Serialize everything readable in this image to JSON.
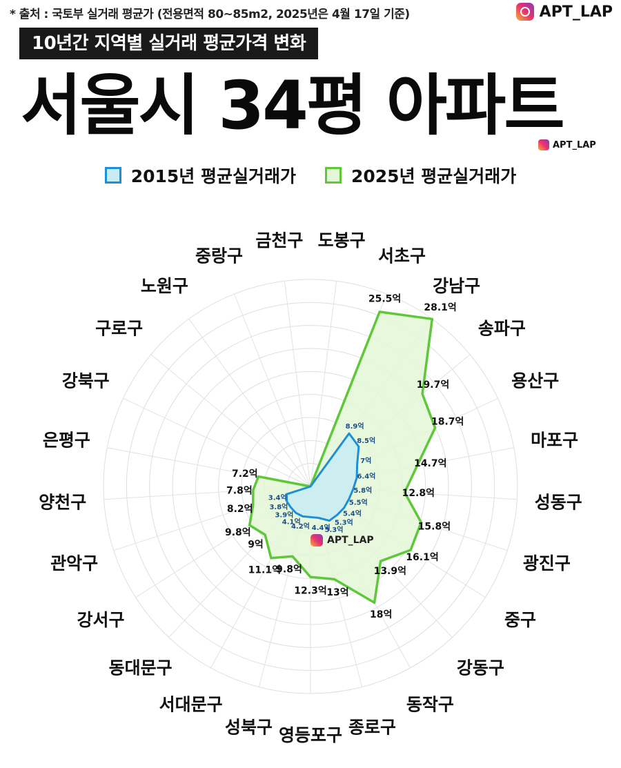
{
  "header": {
    "source": "* 출처 : 국토부 실거래 평균가 (전용면적 80~85m2, 2025년은 4월 17일 기준)",
    "instagram": "APT_LAP",
    "subtitle": "10년간 지역별 실거래 평균가격 변화",
    "title": "서울시 34평 아파트",
    "instagram_small": "APT_LAP"
  },
  "legend": {
    "series2015": "2015년 평균실거래가",
    "series2025": "2025년 평균실거래가"
  },
  "watermark": "APT_LAP",
  "colors": {
    "line2015": "#1e8fd6",
    "fill2015": "#c8ecf5",
    "line2025": "#5fc83a",
    "fill2025": "#e3f7d6"
  },
  "chart_data": {
    "type": "radar",
    "unit": "억",
    "rmax": 28.1,
    "categories": [
      "도봉구",
      "서초구",
      "강남구",
      "송파구",
      "용산구",
      "마포구",
      "성동구",
      "광진구",
      "중구",
      "강동구",
      "동작구",
      "종로구",
      "영등포구",
      "성북구",
      "서대문구",
      "동대문구",
      "강서구",
      "관악구",
      "양천구",
      "은평구",
      "강북구",
      "구로구",
      "노원구",
      "중랑구",
      "금천구"
    ],
    "series": [
      {
        "name": "2015년 평균실거래가",
        "values": [
          null,
          null,
          8.9,
          8.5,
          7,
          6.4,
          5.8,
          5.5,
          5.4,
          5.3,
          5.3,
          4.4,
          null,
          4.2,
          4.1,
          3.9,
          3.8,
          3.4,
          null,
          null,
          null,
          null,
          null,
          null,
          null
        ],
        "labels": [
          "",
          "",
          "8.9억",
          "8.5억",
          "7억",
          "6.4억",
          "5.8억",
          "5.5억",
          "5.4억",
          "5.3억",
          "5.3억",
          "4.4억",
          "",
          "4.2억",
          "4.1억",
          "3.9억",
          "3.8억",
          "3.4억",
          "",
          "",
          "",
          "",
          "",
          "",
          ""
        ]
      },
      {
        "name": "2025년 평균실거래가",
        "values": [
          null,
          25.5,
          28.1,
          19.7,
          18.7,
          14.7,
          12.8,
          15.8,
          16.1,
          13.9,
          18,
          13,
          12.3,
          9.8,
          11.1,
          9,
          9.8,
          8.2,
          7.8,
          7.2,
          null,
          null,
          null,
          null,
          null
        ],
        "labels": [
          "",
          "25.5억",
          "28.1억",
          "19.7억",
          "18.7억",
          "14.7억",
          "12.8억",
          "15.8억",
          "16.1억",
          "13.9억",
          "18억",
          "13억",
          "12.3억",
          "9.8억",
          "11.1억",
          "9억",
          "9.8억",
          "8.2억",
          "7.8억",
          "7.2억",
          "",
          "",
          "",
          "",
          ""
        ]
      }
    ]
  }
}
